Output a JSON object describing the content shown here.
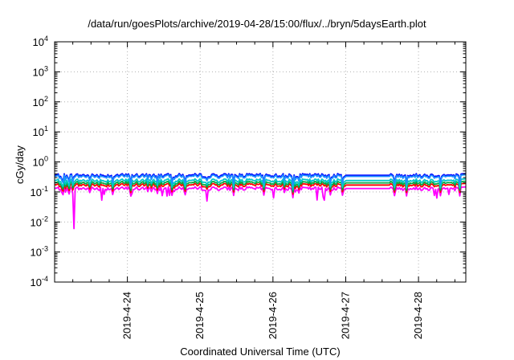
{
  "chart_data": {
    "type": "line",
    "title": "/data/run/goesPlots/archive/2019-04-28/15:00/flux/../bryn/5daysEarth.plot",
    "xlabel": "Coordinated Universal Time (UTC)",
    "ylabel": "cGy/day",
    "yscale": "log",
    "ylim_exp": [
      -4,
      4
    ],
    "y_ticks": [
      {
        "base": "10",
        "exp": "-4"
      },
      {
        "base": "10",
        "exp": "-3"
      },
      {
        "base": "10",
        "exp": "-2"
      },
      {
        "base": "10",
        "exp": "-1"
      },
      {
        "base": "10",
        "exp": "0"
      },
      {
        "base": "10",
        "exp": "1"
      },
      {
        "base": "10",
        "exp": "2"
      },
      {
        "base": "10",
        "exp": "3"
      },
      {
        "base": "10",
        "exp": "4"
      }
    ],
    "xlim_days": [
      0.0,
      5.65
    ],
    "x_ticks": [
      {
        "label": "2019-4-24",
        "day": 1.0
      },
      {
        "label": "2019-4-25",
        "day": 2.0
      },
      {
        "label": "2019-4-26",
        "day": 3.0
      },
      {
        "label": "2019-4-27",
        "day": 4.0
      },
      {
        "label": "2019-4-28",
        "day": 5.0
      }
    ],
    "grid": true,
    "series_colors": [
      "#ff00ff",
      "#ff0000",
      "#00aa44",
      "#00c8c8",
      "#0000ff",
      "#1e90ff"
    ],
    "series_base_values": [
      0.13,
      0.17,
      0.2,
      0.24,
      0.36,
      0.33
    ],
    "data_gap_days": [
      4.0,
      4.6
    ],
    "notable_min": {
      "day": 0.27,
      "value": 0.006
    }
  }
}
